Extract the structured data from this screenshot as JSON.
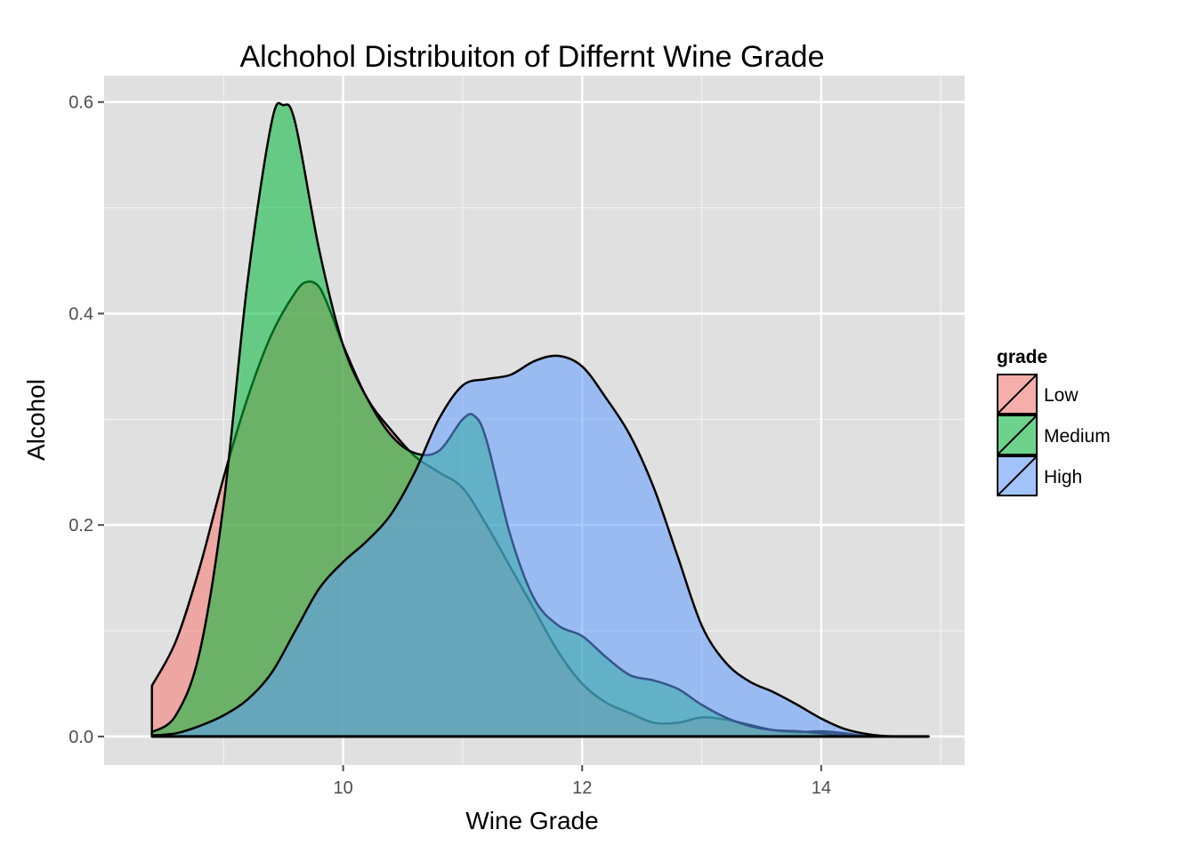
{
  "chart_data": {
    "type": "area",
    "subtype": "density",
    "title": "Alchohol Distribuiton of Differnt Wine Grade",
    "xlabel": "Wine Grade",
    "ylabel": "Alcohol",
    "xlim": [
      8.0,
      15.2
    ],
    "ylim": [
      -0.027,
      0.625
    ],
    "x_ticks": [
      10,
      12,
      14
    ],
    "y_ticks": [
      0.0,
      0.2,
      0.4,
      0.6
    ],
    "x_tick_labels": [
      "10",
      "12",
      "14"
    ],
    "y_tick_labels": [
      "0.0",
      "0.2",
      "0.4",
      "0.6"
    ],
    "grid": true,
    "background": "#e0e0e0",
    "legend": {
      "title": "grade",
      "position": "right",
      "entries": [
        "Low",
        "Medium",
        "High"
      ]
    },
    "series": [
      {
        "name": "Low",
        "color": "#f8766d",
        "points": [
          [
            8.4,
            0.048
          ],
          [
            8.6,
            0.09
          ],
          [
            8.8,
            0.16
          ],
          [
            9.0,
            0.245
          ],
          [
            9.2,
            0.32
          ],
          [
            9.4,
            0.38
          ],
          [
            9.6,
            0.42
          ],
          [
            9.7,
            0.43
          ],
          [
            9.8,
            0.425
          ],
          [
            9.9,
            0.4
          ],
          [
            10.0,
            0.37
          ],
          [
            10.2,
            0.32
          ],
          [
            10.4,
            0.29
          ],
          [
            10.6,
            0.265
          ],
          [
            10.8,
            0.25
          ],
          [
            11.0,
            0.235
          ],
          [
            11.2,
            0.2
          ],
          [
            11.4,
            0.16
          ],
          [
            11.6,
            0.12
          ],
          [
            11.8,
            0.08
          ],
          [
            12.0,
            0.05
          ],
          [
            12.2,
            0.032
          ],
          [
            12.4,
            0.022
          ],
          [
            12.6,
            0.013
          ],
          [
            12.8,
            0.013
          ],
          [
            13.0,
            0.018
          ],
          [
            13.2,
            0.016
          ],
          [
            13.4,
            0.011
          ],
          [
            13.6,
            0.006
          ],
          [
            13.8,
            0.004
          ],
          [
            14.0,
            0.005
          ],
          [
            14.2,
            0.003
          ],
          [
            14.4,
            0.0
          ]
        ]
      },
      {
        "name": "Medium",
        "color": "#00ba38",
        "points": [
          [
            8.4,
            0.004
          ],
          [
            8.6,
            0.02
          ],
          [
            8.8,
            0.08
          ],
          [
            9.0,
            0.22
          ],
          [
            9.2,
            0.43
          ],
          [
            9.4,
            0.58
          ],
          [
            9.5,
            0.597
          ],
          [
            9.6,
            0.58
          ],
          [
            9.8,
            0.46
          ],
          [
            10.0,
            0.37
          ],
          [
            10.2,
            0.32
          ],
          [
            10.4,
            0.285
          ],
          [
            10.6,
            0.268
          ],
          [
            10.8,
            0.27
          ],
          [
            11.0,
            0.3
          ],
          [
            11.1,
            0.303
          ],
          [
            11.2,
            0.28
          ],
          [
            11.4,
            0.19
          ],
          [
            11.6,
            0.13
          ],
          [
            11.8,
            0.105
          ],
          [
            12.0,
            0.095
          ],
          [
            12.2,
            0.075
          ],
          [
            12.4,
            0.058
          ],
          [
            12.6,
            0.053
          ],
          [
            12.8,
            0.045
          ],
          [
            13.0,
            0.03
          ],
          [
            13.2,
            0.018
          ],
          [
            13.4,
            0.01
          ],
          [
            13.6,
            0.006
          ],
          [
            13.8,
            0.005
          ],
          [
            14.0,
            0.003
          ],
          [
            14.2,
            0.001
          ],
          [
            14.4,
            0.0
          ]
        ]
      },
      {
        "name": "High",
        "color": "#619cff",
        "points": [
          [
            8.4,
            0.001
          ],
          [
            8.6,
            0.003
          ],
          [
            8.8,
            0.01
          ],
          [
            9.0,
            0.02
          ],
          [
            9.2,
            0.035
          ],
          [
            9.4,
            0.06
          ],
          [
            9.6,
            0.1
          ],
          [
            9.8,
            0.14
          ],
          [
            10.0,
            0.165
          ],
          [
            10.2,
            0.185
          ],
          [
            10.4,
            0.21
          ],
          [
            10.6,
            0.25
          ],
          [
            10.8,
            0.3
          ],
          [
            11.0,
            0.332
          ],
          [
            11.2,
            0.338
          ],
          [
            11.4,
            0.342
          ],
          [
            11.6,
            0.355
          ],
          [
            11.8,
            0.36
          ],
          [
            12.0,
            0.35
          ],
          [
            12.2,
            0.32
          ],
          [
            12.4,
            0.285
          ],
          [
            12.6,
            0.235
          ],
          [
            12.8,
            0.17
          ],
          [
            13.0,
            0.105
          ],
          [
            13.2,
            0.07
          ],
          [
            13.4,
            0.052
          ],
          [
            13.6,
            0.042
          ],
          [
            13.8,
            0.03
          ],
          [
            14.0,
            0.017
          ],
          [
            14.2,
            0.007
          ],
          [
            14.4,
            0.002
          ],
          [
            14.6,
            0.0
          ],
          [
            14.9,
            0.0
          ]
        ]
      }
    ]
  }
}
